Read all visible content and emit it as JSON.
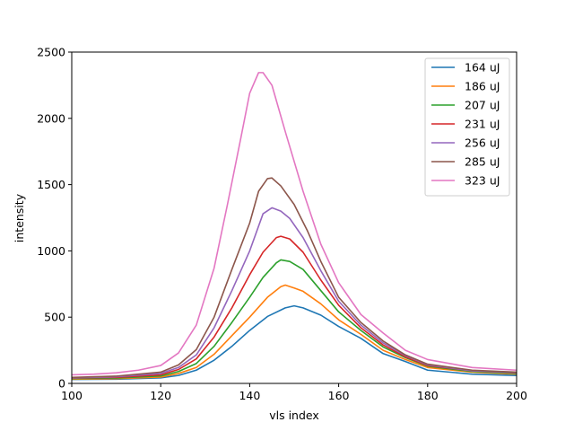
{
  "chart_data": {
    "type": "line",
    "title": "",
    "xlabel": "vls index",
    "ylabel": "intensity",
    "xlim": [
      100,
      200
    ],
    "ylim": [
      0,
      2500
    ],
    "xticks": [
      100,
      120,
      140,
      160,
      180,
      200
    ],
    "yticks": [
      0,
      500,
      1000,
      1500,
      2000,
      2500
    ],
    "grid": false,
    "legend_position": "top-right",
    "series": [
      {
        "name": "164 uJ",
        "color": "#1f77b4",
        "points": [
          [
            100,
            30
          ],
          [
            110,
            32
          ],
          [
            120,
            42
          ],
          [
            124,
            60
          ],
          [
            128,
            100
          ],
          [
            132,
            175
          ],
          [
            136,
            280
          ],
          [
            140,
            400
          ],
          [
            144,
            505
          ],
          [
            148,
            570
          ],
          [
            150,
            585
          ],
          [
            152,
            570
          ],
          [
            156,
            515
          ],
          [
            160,
            430
          ],
          [
            165,
            340
          ],
          [
            170,
            225
          ],
          [
            175,
            165
          ],
          [
            180,
            100
          ],
          [
            190,
            70
          ],
          [
            200,
            60
          ]
        ]
      },
      {
        "name": "186 uJ",
        "color": "#ff7f0e",
        "points": [
          [
            100,
            32
          ],
          [
            110,
            36
          ],
          [
            120,
            48
          ],
          [
            124,
            75
          ],
          [
            128,
            120
          ],
          [
            132,
            220
          ],
          [
            136,
            360
          ],
          [
            140,
            500
          ],
          [
            144,
            650
          ],
          [
            147,
            730
          ],
          [
            148,
            742
          ],
          [
            150,
            720
          ],
          [
            152,
            695
          ],
          [
            156,
            600
          ],
          [
            160,
            480
          ],
          [
            165,
            370
          ],
          [
            170,
            250
          ],
          [
            175,
            180
          ],
          [
            180,
            120
          ],
          [
            190,
            85
          ],
          [
            200,
            70
          ]
        ]
      },
      {
        "name": "207 uJ",
        "color": "#2ca02c",
        "points": [
          [
            100,
            36
          ],
          [
            110,
            40
          ],
          [
            120,
            56
          ],
          [
            124,
            90
          ],
          [
            128,
            150
          ],
          [
            132,
            280
          ],
          [
            136,
            460
          ],
          [
            140,
            650
          ],
          [
            143,
            800
          ],
          [
            146,
            910
          ],
          [
            147,
            932
          ],
          [
            149,
            920
          ],
          [
            152,
            860
          ],
          [
            156,
            700
          ],
          [
            160,
            540
          ],
          [
            165,
            400
          ],
          [
            170,
            275
          ],
          [
            175,
            195
          ],
          [
            180,
            130
          ],
          [
            190,
            90
          ],
          [
            200,
            75
          ]
        ]
      },
      {
        "name": "231 uJ",
        "color": "#d62728",
        "points": [
          [
            100,
            40
          ],
          [
            110,
            45
          ],
          [
            120,
            65
          ],
          [
            124,
            105
          ],
          [
            128,
            185
          ],
          [
            132,
            350
          ],
          [
            136,
            570
          ],
          [
            140,
            820
          ],
          [
            143,
            990
          ],
          [
            146,
            1100
          ],
          [
            147,
            1110
          ],
          [
            149,
            1090
          ],
          [
            152,
            990
          ],
          [
            156,
            780
          ],
          [
            160,
            590
          ],
          [
            165,
            420
          ],
          [
            170,
            290
          ],
          [
            175,
            200
          ],
          [
            180,
            135
          ],
          [
            190,
            95
          ],
          [
            200,
            80
          ]
        ]
      },
      {
        "name": "256 uJ",
        "color": "#9467bd",
        "points": [
          [
            100,
            42
          ],
          [
            110,
            50
          ],
          [
            120,
            75
          ],
          [
            124,
            120
          ],
          [
            128,
            215
          ],
          [
            132,
            420
          ],
          [
            136,
            700
          ],
          [
            140,
            1000
          ],
          [
            143,
            1280
          ],
          [
            145,
            1325
          ],
          [
            147,
            1300
          ],
          [
            149,
            1245
          ],
          [
            152,
            1100
          ],
          [
            156,
            850
          ],
          [
            160,
            620
          ],
          [
            165,
            440
          ],
          [
            170,
            305
          ],
          [
            175,
            210
          ],
          [
            180,
            140
          ],
          [
            190,
            95
          ],
          [
            200,
            82
          ]
        ]
      },
      {
        "name": "285 uJ",
        "color": "#8c564b",
        "points": [
          [
            100,
            45
          ],
          [
            110,
            55
          ],
          [
            120,
            85
          ],
          [
            124,
            140
          ],
          [
            128,
            255
          ],
          [
            132,
            500
          ],
          [
            136,
            860
          ],
          [
            140,
            1210
          ],
          [
            142,
            1450
          ],
          [
            144,
            1545
          ],
          [
            145,
            1550
          ],
          [
            147,
            1490
          ],
          [
            150,
            1350
          ],
          [
            153,
            1150
          ],
          [
            156,
            920
          ],
          [
            160,
            650
          ],
          [
            165,
            460
          ],
          [
            170,
            320
          ],
          [
            175,
            215
          ],
          [
            180,
            145
          ],
          [
            190,
            100
          ],
          [
            200,
            85
          ]
        ]
      },
      {
        "name": "323 uJ",
        "color": "#e377c2",
        "points": [
          [
            100,
            65
          ],
          [
            105,
            70
          ],
          [
            110,
            80
          ],
          [
            115,
            100
          ],
          [
            120,
            135
          ],
          [
            124,
            230
          ],
          [
            128,
            440
          ],
          [
            132,
            870
          ],
          [
            135,
            1350
          ],
          [
            138,
            1850
          ],
          [
            140,
            2190
          ],
          [
            142,
            2345
          ],
          [
            143,
            2345
          ],
          [
            145,
            2250
          ],
          [
            148,
            1900
          ],
          [
            152,
            1450
          ],
          [
            156,
            1050
          ],
          [
            160,
            760
          ],
          [
            165,
            520
          ],
          [
            170,
            380
          ],
          [
            175,
            250
          ],
          [
            180,
            180
          ],
          [
            190,
            120
          ],
          [
            200,
            100
          ]
        ]
      }
    ]
  }
}
